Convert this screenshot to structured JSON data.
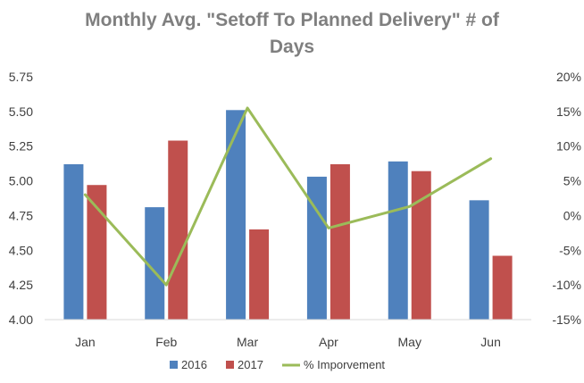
{
  "chart_data": {
    "type": "bar",
    "title_line1": "Monthly Avg. \"Setoff To Planned Delivery\"  # of",
    "title_line2": "Days",
    "categories": [
      "Jan",
      "Feb",
      "Mar",
      "Apr",
      "May",
      "Jun"
    ],
    "series": [
      {
        "name": "2016",
        "type": "bar",
        "axis": "left",
        "color": "#4f81bd",
        "values": [
          5.12,
          4.81,
          5.51,
          5.03,
          5.14,
          4.86
        ]
      },
      {
        "name": "2017",
        "type": "bar",
        "axis": "left",
        "color": "#c0504d",
        "values": [
          4.97,
          5.29,
          4.65,
          5.12,
          5.07,
          4.46
        ]
      },
      {
        "name": "% Imporvement",
        "type": "line",
        "axis": "right",
        "color": "#9bbb59",
        "values": [
          3.0,
          -10.0,
          15.5,
          -1.8,
          1.3,
          8.2
        ]
      }
    ],
    "ylim_left": [
      4.0,
      5.75
    ],
    "yticks_left": [
      "4.00",
      "4.25",
      "4.50",
      "4.75",
      "5.00",
      "5.25",
      "5.50",
      "5.75"
    ],
    "ylim_right": [
      -15,
      20
    ],
    "yticks_right": [
      "-15%",
      "-10%",
      "-5%",
      "0%",
      "5%",
      "10%",
      "15%",
      "20%"
    ],
    "grid": false,
    "legend_position": "bottom"
  }
}
